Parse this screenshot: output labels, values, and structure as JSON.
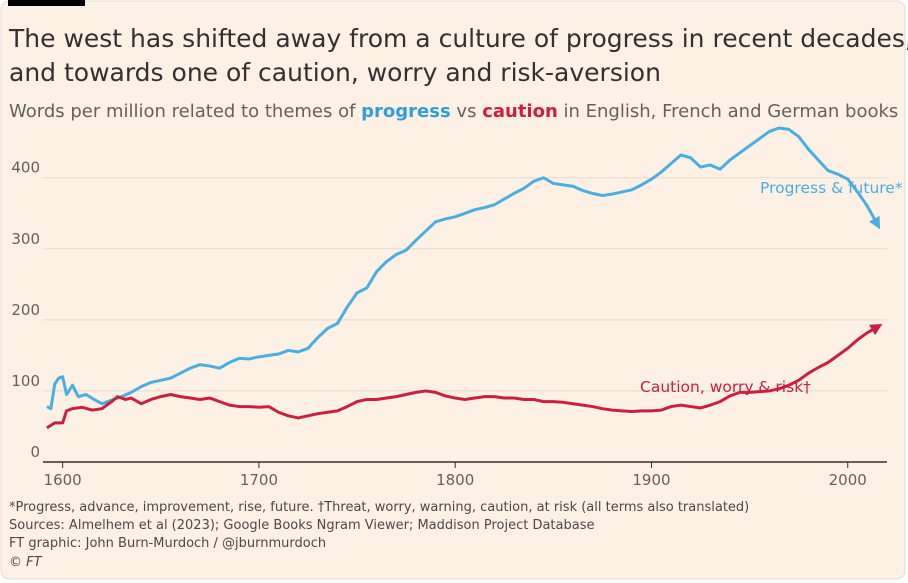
{
  "chart_data": {
    "type": "line",
    "title": [
      "The west has shifted away from a culture of progress in recent decades,",
      "and towards one of caution, worry and risk-aversion"
    ],
    "subtitle": [
      {
        "text": "Words per million related to themes of ",
        "color": "#66605c"
      },
      {
        "text": "progress",
        "color": "#2f9fd8"
      },
      {
        "text": " vs ",
        "color": "#66605c"
      },
      {
        "text": "caution",
        "color": "#cc1f3d"
      },
      {
        "text": " in English, French and German books",
        "color": "#66605c"
      }
    ],
    "xlim": [
      1590,
      2020
    ],
    "xticks": [
      1600,
      1700,
      1800,
      1900,
      2000
    ],
    "ylim": [
      0,
      470
    ],
    "yticks": [
      0,
      100,
      200,
      300,
      400
    ],
    "grid": true,
    "series": [
      {
        "name": "Progress & future*",
        "color": "#4aaee0",
        "x": [
          1592,
          1594,
          1596,
          1598,
          1600,
          1602,
          1605,
          1608,
          1612,
          1616,
          1620,
          1625,
          1630,
          1635,
          1640,
          1645,
          1650,
          1655,
          1660,
          1665,
          1670,
          1675,
          1680,
          1685,
          1690,
          1695,
          1700,
          1705,
          1710,
          1715,
          1720,
          1725,
          1730,
          1735,
          1740,
          1745,
          1750,
          1755,
          1760,
          1765,
          1770,
          1775,
          1780,
          1785,
          1790,
          1795,
          1800,
          1805,
          1810,
          1815,
          1820,
          1825,
          1830,
          1835,
          1840,
          1845,
          1850,
          1855,
          1860,
          1865,
          1870,
          1875,
          1880,
          1885,
          1890,
          1895,
          1900,
          1905,
          1910,
          1915,
          1920,
          1925,
          1930,
          1935,
          1940,
          1945,
          1950,
          1955,
          1960,
          1965,
          1970,
          1975,
          1980,
          1985,
          1990,
          1995,
          2000,
          2005,
          2010,
          2015
        ],
        "values": [
          78,
          75,
          110,
          118,
          120,
          95,
          108,
          92,
          95,
          88,
          82,
          87,
          92,
          98,
          106,
          112,
          115,
          118,
          125,
          132,
          137,
          135,
          132,
          140,
          146,
          145,
          148,
          150,
          152,
          157,
          155,
          160,
          175,
          188,
          195,
          218,
          238,
          245,
          268,
          282,
          292,
          298,
          312,
          325,
          338,
          342,
          345,
          350,
          355,
          358,
          362,
          370,
          378,
          385,
          395,
          400,
          392,
          390,
          388,
          382,
          378,
          375,
          377,
          380,
          383,
          390,
          398,
          408,
          420,
          432,
          428,
          415,
          418,
          412,
          425,
          435,
          445,
          455,
          465,
          470,
          468,
          458,
          440,
          425,
          410,
          405,
          398,
          380,
          360,
          335
        ]
      },
      {
        "name": "Caution, worry & risk†",
        "color": "#cc1f3d",
        "x": [
          1592,
          1596,
          1600,
          1602,
          1605,
          1610,
          1615,
          1620,
          1625,
          1628,
          1632,
          1635,
          1640,
          1645,
          1650,
          1655,
          1660,
          1665,
          1670,
          1675,
          1680,
          1685,
          1690,
          1695,
          1700,
          1705,
          1710,
          1715,
          1720,
          1725,
          1730,
          1735,
          1740,
          1745,
          1750,
          1755,
          1760,
          1765,
          1770,
          1775,
          1780,
          1785,
          1790,
          1795,
          1800,
          1805,
          1810,
          1815,
          1820,
          1825,
          1830,
          1835,
          1840,
          1845,
          1850,
          1855,
          1860,
          1865,
          1870,
          1875,
          1880,
          1885,
          1890,
          1895,
          1900,
          1905,
          1910,
          1915,
          1920,
          1925,
          1930,
          1935,
          1940,
          1945,
          1950,
          1955,
          1960,
          1965,
          1970,
          1975,
          1980,
          1985,
          1990,
          1995,
          2000,
          2005,
          2010,
          2015
        ],
        "values": [
          48,
          55,
          55,
          72,
          75,
          77,
          73,
          75,
          85,
          92,
          88,
          90,
          82,
          88,
          92,
          95,
          92,
          90,
          88,
          90,
          85,
          80,
          78,
          78,
          77,
          78,
          70,
          65,
          62,
          65,
          68,
          70,
          72,
          78,
          85,
          88,
          88,
          90,
          92,
          95,
          98,
          100,
          98,
          93,
          90,
          88,
          90,
          92,
          92,
          90,
          90,
          88,
          88,
          85,
          85,
          84,
          82,
          80,
          78,
          75,
          73,
          72,
          71,
          72,
          72,
          73,
          78,
          80,
          78,
          76,
          80,
          85,
          93,
          98,
          98,
          99,
          100,
          103,
          108,
          115,
          125,
          133,
          140,
          150,
          160,
          172,
          182,
          190
        ]
      }
    ],
    "notes": [
      "*Progress, advance, improvement, rise, future. †Threat, worry, warning, caution, at risk (all terms also translated)",
      "Sources: Almelhem et al (2023); Google Books Ngram Viewer; Maddison Project Database",
      "FT graphic: John Burn-Murdoch / @jburnmurdoch",
      "© FT"
    ]
  }
}
